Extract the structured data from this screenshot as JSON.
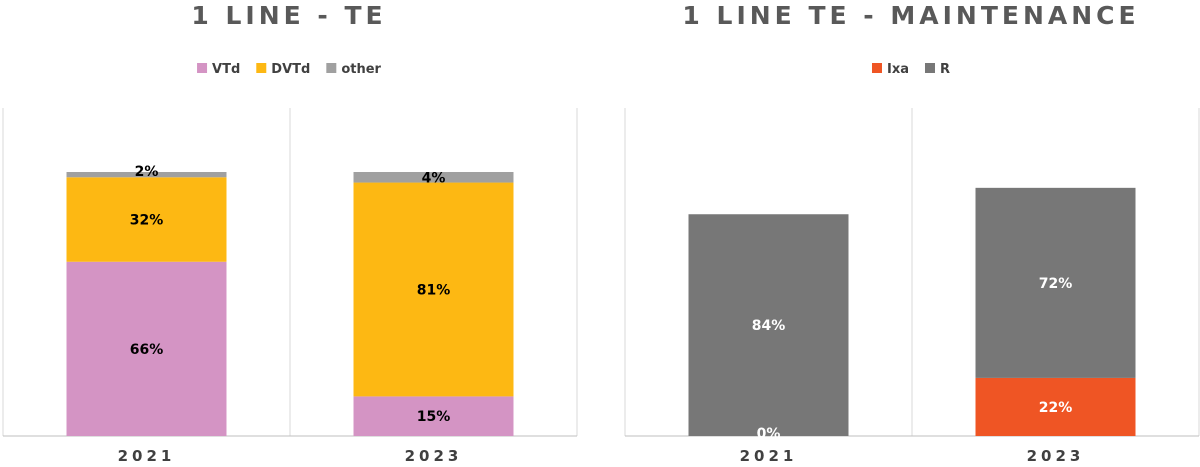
{
  "chart_data": [
    {
      "type": "bar",
      "stacked": true,
      "title": "1 LINE - TE",
      "categories": [
        "2021",
        "2023"
      ],
      "series": [
        {
          "name": "VTd",
          "color": "#d494c4",
          "values": [
            66,
            15
          ],
          "labels": [
            "66%",
            "15%"
          ],
          "label_color": "#000000"
        },
        {
          "name": "DVTd",
          "color": "#fdb813",
          "values": [
            32,
            81
          ],
          "labels": [
            "32%",
            "81%"
          ],
          "label_color": "#000000"
        },
        {
          "name": "other",
          "color": "#a0a0a0",
          "values": [
            2,
            4
          ],
          "labels": [
            "2%",
            "4%"
          ],
          "label_color": "#000000"
        }
      ],
      "ylim": [
        0,
        100
      ],
      "legend_position": "top",
      "grid": false
    },
    {
      "type": "bar",
      "stacked": true,
      "title": "1 LINE TE - MAINTENANCE",
      "categories": [
        "2021",
        "2023"
      ],
      "series": [
        {
          "name": "Ixa",
          "color": "#ef5524",
          "values": [
            0,
            22
          ],
          "labels": [
            "0%",
            "22%"
          ],
          "label_color": "#ffffff"
        },
        {
          "name": "R",
          "color": "#777777",
          "values": [
            84,
            72
          ],
          "labels": [
            "84%",
            "72%"
          ],
          "label_color": "#ffffff"
        }
      ],
      "ylim": [
        0,
        100
      ],
      "legend_position": "top",
      "grid": false
    }
  ]
}
